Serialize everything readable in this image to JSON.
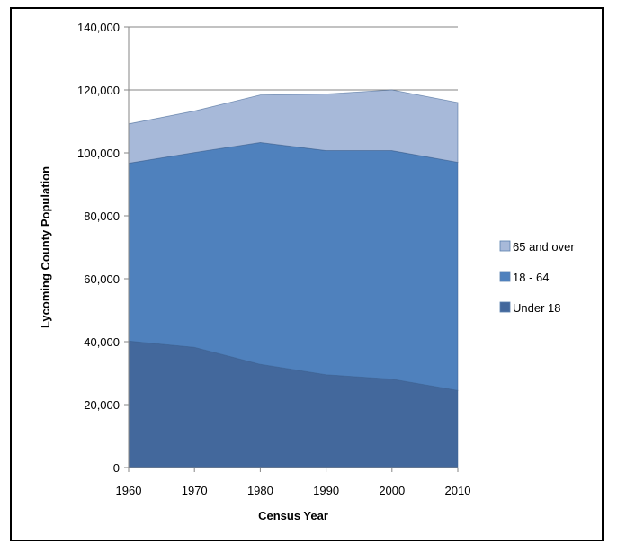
{
  "chart_data": {
    "type": "area",
    "stacked": true,
    "xlabel": "Census Year",
    "ylabel": "Lycoming County Population",
    "x": [
      1960,
      1970,
      1980,
      1990,
      2000,
      2010
    ],
    "x_tick_labels": [
      "1960",
      "1970",
      "1980",
      "1990",
      "2000",
      "2010"
    ],
    "ylim": [
      0,
      140000
    ],
    "y_ticks": [
      0,
      20000,
      40000,
      60000,
      80000,
      100000,
      120000,
      140000
    ],
    "y_tick_labels": [
      "0",
      "20,000",
      "40,000",
      "60,000",
      "80,000",
      "100,000",
      "120,000",
      "140,000"
    ],
    "grid": "horizontal",
    "legend_position": "right",
    "series": [
      {
        "name": "Under 18",
        "color": "#43689C",
        "values": [
          40200,
          38200,
          32800,
          29500,
          28100,
          24500
        ]
      },
      {
        "name": "18 - 64",
        "color": "#4F81BD",
        "values": [
          56500,
          61900,
          70500,
          71200,
          72600,
          72500
        ]
      },
      {
        "name": "65 and over",
        "color": "#A7B9D9",
        "values": [
          12500,
          13200,
          15100,
          18000,
          19300,
          19000
        ]
      }
    ],
    "legend_order": [
      "65 and over",
      "18 - 64",
      "Under 18"
    ]
  }
}
